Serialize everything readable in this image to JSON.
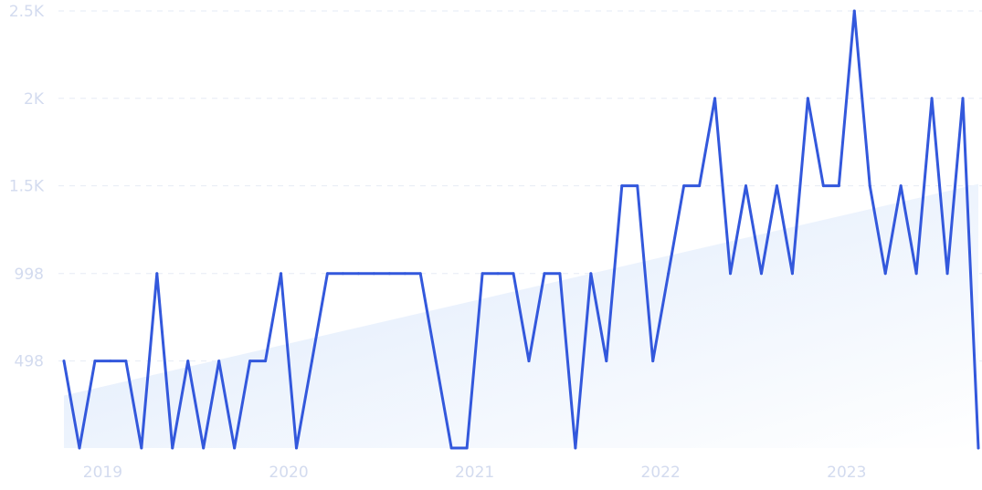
{
  "chart_data": {
    "type": "line",
    "title": "",
    "xlabel": "",
    "ylabel": "",
    "ylim": [
      0,
      2500
    ],
    "y_ticks": [
      {
        "value": 498,
        "label": "498"
      },
      {
        "value": 998,
        "label": "998"
      },
      {
        "value": 1500,
        "label": "1.5K"
      },
      {
        "value": 2000,
        "label": "2K"
      },
      {
        "value": 2500,
        "label": "2.5K"
      }
    ],
    "x_ticks": [
      "2019",
      "2020",
      "2021",
      "2022",
      "2023"
    ],
    "grid": "horizontal-dashed",
    "colors": {
      "line": "#3358dc",
      "area_top": "#dbe8fb",
      "grid": "#e6ebf5",
      "tick_text": "#d3dbef"
    },
    "trend": {
      "start": [
        "2018-11",
        300
      ],
      "end": [
        "2023-10",
        1510
      ]
    },
    "series": [
      {
        "x": [
          "2018-11",
          "2018-12",
          "2019-01",
          "2019-02",
          "2019-03",
          "2019-04",
          "2019-05",
          "2019-06",
          "2019-07",
          "2019-08",
          "2019-09",
          "2019-10",
          "2019-11",
          "2019-12",
          "2020-01",
          "2020-02",
          "2020-03",
          "2020-04",
          "2020-05",
          "2020-06",
          "2020-07",
          "2020-08",
          "2020-09",
          "2020-10",
          "2020-11",
          "2020-12",
          "2021-01",
          "2021-02",
          "2021-03",
          "2021-04",
          "2021-05",
          "2021-06",
          "2021-07",
          "2021-08",
          "2021-09",
          "2021-10",
          "2021-11",
          "2021-12",
          "2022-01",
          "2022-02",
          "2022-03",
          "2022-04",
          "2022-05",
          "2022-06",
          "2022-07",
          "2022-08",
          "2022-09",
          "2022-10",
          "2022-11",
          "2022-12",
          "2023-01",
          "2023-02",
          "2023-03",
          "2023-04",
          "2023-05",
          "2023-06",
          "2023-07",
          "2023-08",
          "2023-09",
          "2023-10"
        ],
        "values": [
          498,
          0,
          498,
          498,
          498,
          0,
          998,
          0,
          498,
          0,
          498,
          0,
          498,
          498,
          998,
          0,
          498,
          998,
          998,
          998,
          998,
          998,
          998,
          998,
          498,
          0,
          0,
          998,
          998,
          998,
          498,
          998,
          998,
          0,
          998,
          498,
          1500,
          1500,
          498,
          998,
          1500,
          1500,
          2000,
          998,
          1500,
          998,
          1500,
          998,
          2000,
          1500,
          1500,
          2500,
          1500,
          998,
          1500,
          998,
          2000,
          998,
          2000,
          0
        ]
      }
    ]
  }
}
